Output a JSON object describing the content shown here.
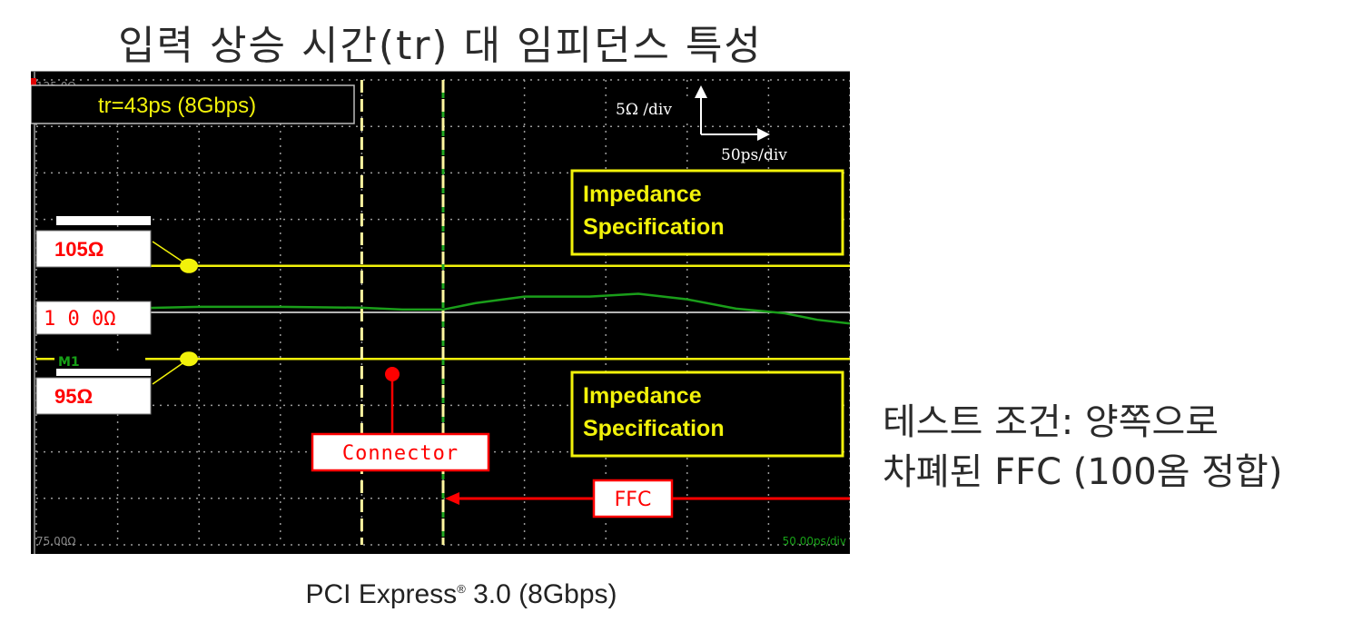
{
  "title": "입력 상승 시간(tr) 대 임피던스 특성",
  "caption": {
    "text": "PCI Express",
    "mark": "®",
    "suffix": " 3.0 (8Gbps)"
  },
  "test_condition": {
    "line1": "테스트 조건: 양쪽으로",
    "line2": "차폐된 FFC (100옴 정합)"
  },
  "colors": {
    "background": "#000000",
    "trace": "#1a9e1a",
    "limit": "#f2f20a",
    "reference": "#b4b4b4",
    "marker": "#ff0000",
    "grid": "#9a9a9a"
  },
  "chart_data": {
    "type": "line",
    "scope": {
      "top_label": "125.0Ω",
      "bottom_label": "75.00Ω",
      "bottom_right_label": "50.00ps/div",
      "m1_label": "M1",
      "rise_time": "tr=43ps (8Gbps)",
      "scale_vertical": "5Ω /div",
      "scale_horizontal": "50ps/div"
    },
    "x_unit": "ps",
    "y_unit": "Ω",
    "ylim": [
      75,
      125
    ],
    "xlim": [
      0,
      500
    ],
    "grid": true,
    "limits": [
      {
        "value": 105,
        "label": "105Ω",
        "spec": [
          "Impedance",
          "Specification"
        ]
      },
      {
        "value": 95,
        "label": "95Ω",
        "spec": [
          "Impedance",
          "Specification"
        ]
      }
    ],
    "reference": {
      "value": 100,
      "label": "1 0 0Ω"
    },
    "markers": [
      {
        "x": 200,
        "label": "Connector"
      },
      {
        "x": 250,
        "label": "FFC"
      }
    ],
    "series": [
      {
        "x": [
          0,
          50,
          100,
          150,
          200,
          225,
          250,
          270,
          300,
          340,
          370,
          400,
          430,
          460,
          480,
          500
        ],
        "values": [
          100.3,
          100.4,
          100.6,
          100.6,
          100.5,
          100.3,
          100.3,
          101.0,
          101.7,
          101.7,
          102.0,
          101.4,
          100.4,
          99.9,
          99.2,
          98.8
        ]
      }
    ]
  }
}
